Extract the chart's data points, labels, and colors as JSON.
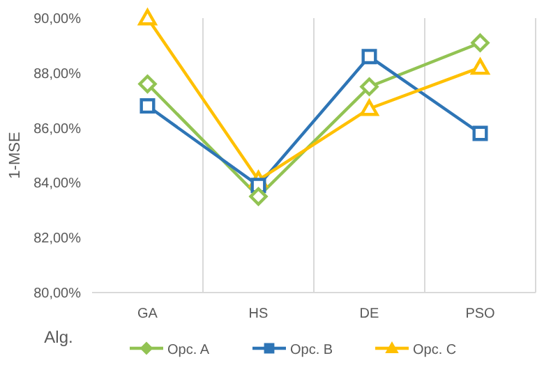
{
  "chart_data": {
    "type": "line",
    "ylabel": "1-MSE",
    "xlabel": "Alg.",
    "categories": [
      "GA",
      "HS",
      "DE",
      "PSO"
    ],
    "series": [
      {
        "name": "Opc. A",
        "color": "#92c353",
        "marker": "diamond",
        "values": [
          87.6,
          83.5,
          87.5,
          89.1
        ]
      },
      {
        "name": "Opc. B",
        "color": "#2e75b6",
        "marker": "square",
        "values": [
          86.8,
          83.9,
          88.6,
          85.8
        ]
      },
      {
        "name": "Opc. C",
        "color": "#ffc000",
        "marker": "triangle",
        "values": [
          90.0,
          84.1,
          86.7,
          88.2
        ]
      }
    ],
    "ylim": [
      80,
      90
    ],
    "yticks": [
      {
        "value": 80,
        "label": "80,00%"
      },
      {
        "value": 82,
        "label": "82,00%"
      },
      {
        "value": 84,
        "label": "84,00%"
      },
      {
        "value": 86,
        "label": "86,00%"
      },
      {
        "value": 88,
        "label": "88,00%"
      },
      {
        "value": 90,
        "label": "90,00%"
      }
    ],
    "grid": "x",
    "legend": "bottom",
    "line_style": "solid"
  }
}
